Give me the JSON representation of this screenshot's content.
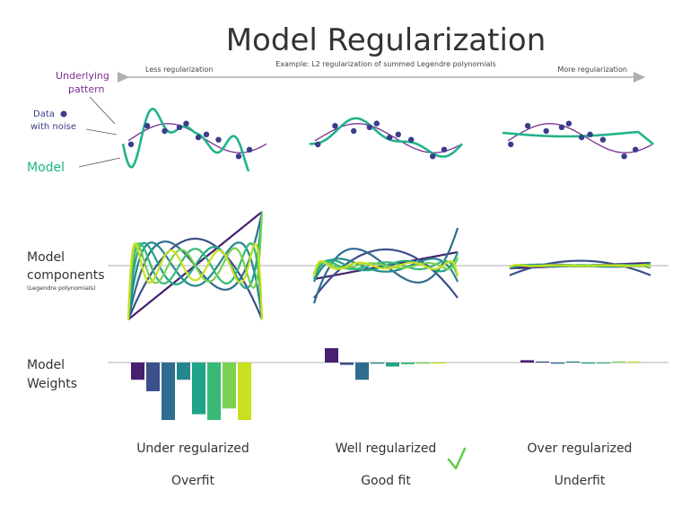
{
  "title": "Model Regularization",
  "subtitle": "Example: L2 regularization of summed Legendre polynomials",
  "arrow_left_label": "Less regularization",
  "arrow_right_label": "More regularization",
  "annotations": {
    "underlying_line1": "Underlying",
    "underlying_line2": "pattern",
    "data_line1": "Data",
    "data_line2": "with noise",
    "model": "Model"
  },
  "row_labels": {
    "components_line1": "Model",
    "components_line2": "components",
    "components_note": "(Legendre polynomials)",
    "weights_line1": "Model",
    "weights_line2": "Weights"
  },
  "columns": [
    {
      "caption": "Under regularized",
      "outcome": "Overfit"
    },
    {
      "caption": "Well regularized",
      "outcome": "Good fit"
    },
    {
      "caption": "Over regularized",
      "outcome": "Underfit"
    }
  ],
  "weights": [
    [
      -0.3,
      -0.5,
      -1.0,
      -0.3,
      -0.9,
      -1.0,
      -0.8,
      -1.0
    ],
    [
      0.25,
      -0.04,
      -0.3,
      -0.02,
      -0.07,
      -0.03,
      -0.02,
      -0.02
    ],
    [
      0.04,
      0.0,
      -0.02,
      0.0,
      -0.01,
      -0.01,
      0.0,
      0.0
    ]
  ],
  "colors": {
    "underlying": "#7a2e8f",
    "model": "#21b38a",
    "data_points": "#3b3d8c",
    "arrow": "#b0b0b0",
    "check": "#5ccc4a",
    "palette": [
      "#45216f",
      "#3b4f8a",
      "#2f6c8e",
      "#24878e",
      "#20a386",
      "#38b977",
      "#7ad151",
      "#c8e020"
    ]
  }
}
